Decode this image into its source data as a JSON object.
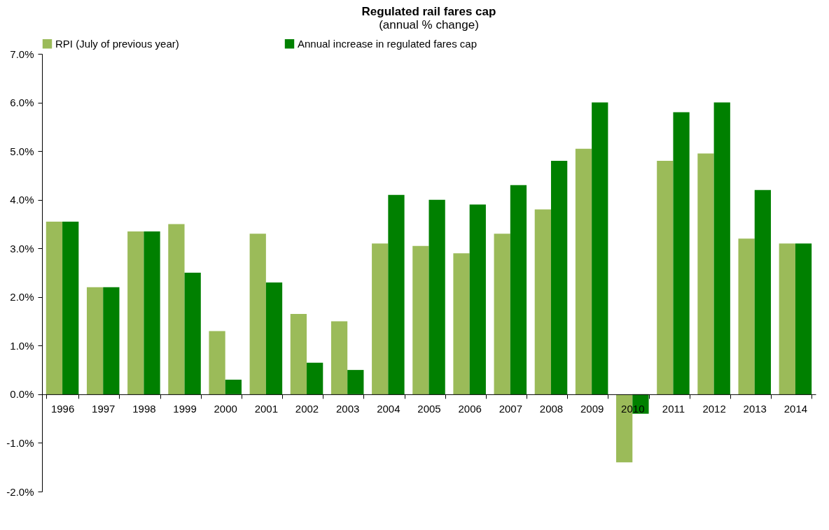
{
  "chart_data": {
    "type": "bar",
    "title": "Regulated rail fares cap",
    "subtitle": "(annual % change)",
    "categories": [
      "1996",
      "1997",
      "1998",
      "1999",
      "2000",
      "2001",
      "2002",
      "2003",
      "2004",
      "2005",
      "2006",
      "2007",
      "2008",
      "2009",
      "2010",
      "2011",
      "2012",
      "2013",
      "2014"
    ],
    "series": [
      {
        "name": "RPI (July of previous year)",
        "color": "#9bbb59",
        "values": [
          3.55,
          2.2,
          3.35,
          3.5,
          1.3,
          3.3,
          1.65,
          1.5,
          3.1,
          3.05,
          2.9,
          3.3,
          3.8,
          5.05,
          -1.4,
          4.8,
          4.95,
          3.2,
          3.1
        ]
      },
      {
        "name": "Annual increase in regulated fares cap",
        "color": "#008000",
        "values": [
          3.55,
          2.2,
          3.35,
          2.5,
          0.3,
          2.3,
          0.65,
          0.5,
          4.1,
          4.0,
          3.9,
          4.3,
          4.8,
          6.0,
          -0.4,
          5.8,
          6.0,
          4.2,
          3.1
        ]
      }
    ],
    "ylim": [
      -2,
      7
    ],
    "yticks": [
      {
        "value": -2,
        "label": "-2.0%"
      },
      {
        "value": -1,
        "label": "-1.0%"
      },
      {
        "value": 0,
        "label": "0.0%"
      },
      {
        "value": 1,
        "label": "1.0%"
      },
      {
        "value": 2,
        "label": "2.0%"
      },
      {
        "value": 3,
        "label": "3.0%"
      },
      {
        "value": 4,
        "label": "4.0%"
      },
      {
        "value": 5,
        "label": "5.0%"
      },
      {
        "value": 6,
        "label": "6.0%"
      },
      {
        "value": 7,
        "label": "7.0%"
      }
    ],
    "grid": false,
    "legend": "top"
  }
}
